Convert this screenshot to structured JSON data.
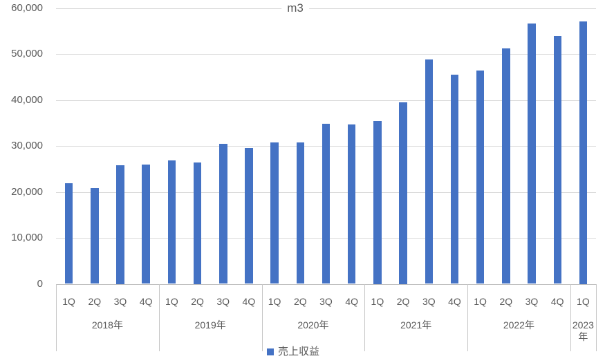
{
  "chart_data": {
    "type": "bar",
    "title": "m3",
    "xlabel": "",
    "ylabel": "",
    "ylim": [
      0,
      60000
    ],
    "ytick_interval": 10000,
    "ytick_labels": [
      "0",
      "10,000",
      "20,000",
      "30,000",
      "40,000",
      "50,000",
      "60,000"
    ],
    "grid": true,
    "legend_position": "bottom",
    "categories": [
      "1Q",
      "2Q",
      "3Q",
      "4Q",
      "1Q",
      "2Q",
      "3Q",
      "4Q",
      "1Q",
      "2Q",
      "3Q",
      "4Q",
      "1Q",
      "2Q",
      "3Q",
      "4Q",
      "1Q",
      "2Q",
      "3Q",
      "4Q",
      "1Q"
    ],
    "year_groups": [
      {
        "label": "2018年",
        "span": 4
      },
      {
        "label": "2019年",
        "span": 4
      },
      {
        "label": "2020年",
        "span": 4
      },
      {
        "label": "2021年",
        "span": 4
      },
      {
        "label": "2022年",
        "span": 4
      },
      {
        "label": "2023年",
        "span": 1
      }
    ],
    "series": [
      {
        "name": "売上収益",
        "color": "#4472C4",
        "values": [
          21900,
          20900,
          25800,
          26000,
          26900,
          26400,
          30400,
          29500,
          30800,
          30800,
          34800,
          34700,
          35500,
          39500,
          48800,
          45500,
          46400,
          51200,
          56700,
          54000,
          57100
        ]
      }
    ],
    "colors": {
      "bar": "#4472C4",
      "gridline": "#d9d9d9",
      "axis": "#bfbfbf",
      "text": "#595959",
      "background": "#ffffff"
    }
  }
}
